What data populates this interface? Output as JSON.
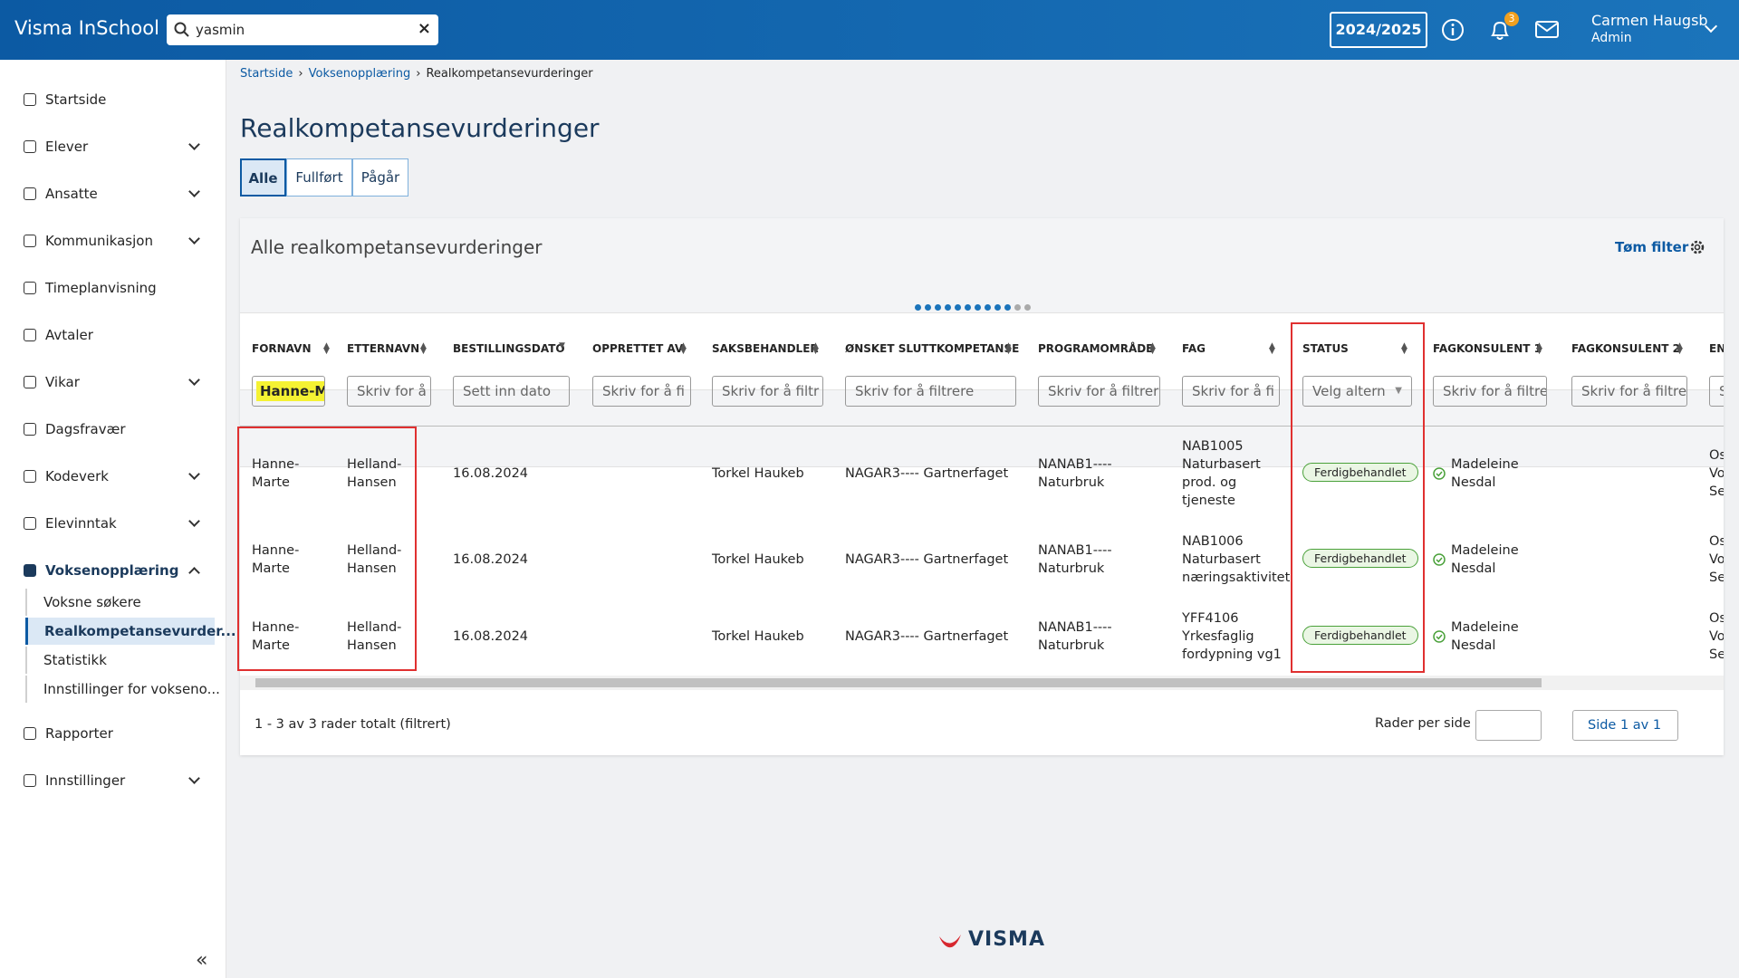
{
  "header": {
    "app_title": "Visma InSchool",
    "search": "yasmin",
    "school_year": "2024/2025",
    "notification_count": "3",
    "user_name": "Carmen Haugsb",
    "user_role": "Admin"
  },
  "sidebar": {
    "items": [
      {
        "label": "Startside"
      },
      {
        "label": "Elever"
      },
      {
        "label": "Ansatte"
      },
      {
        "label": "Kommunikasjon"
      },
      {
        "label": "Timeplanvisning"
      },
      {
        "label": "Avtaler"
      },
      {
        "label": "Vikar"
      },
      {
        "label": "Dagsfravær"
      },
      {
        "label": "Kodeverk"
      },
      {
        "label": "Elevinntak"
      },
      {
        "label": "Voksenopplæring"
      }
    ],
    "subitems": [
      "Voksne søkere",
      "Realkompetansevurder...",
      "Statistikk",
      "Innstillinger for vokseno..."
    ],
    "bottom_items": [
      "Rapporter",
      "Innstillinger"
    ]
  },
  "breadcrumb": [
    "Startside",
    "Voksenopplæring",
    "Realkompetansevurderinger"
  ],
  "page_title": "Realkompetansevurderinger",
  "tabs": [
    "Alle",
    "Fullført",
    "Pågår"
  ],
  "card": {
    "title": "Alle realkompetansevurderinger",
    "clear_filter": "Tøm filter"
  },
  "table": {
    "columns": [
      {
        "label": "FORNAVN",
        "filter": "Hanne-M"
      },
      {
        "label": "ETTERNAVN",
        "filter": "Skriv for å"
      },
      {
        "label": "BESTILLINGSDATO",
        "filter": "Sett inn dato"
      },
      {
        "label": "OPPRETTET AV",
        "filter": "Skriv for å fi"
      },
      {
        "label": "SAKSBEHANDLER",
        "filter": "Skriv for å filtr"
      },
      {
        "label": "ØNSKET SLUTTKOMPETANSE",
        "filter": "Skriv for å filtrere"
      },
      {
        "label": "PROGRAMOMRÅDE",
        "filter": "Skriv for å filtrer"
      },
      {
        "label": "FAG",
        "filter": "Skriv for å fi"
      },
      {
        "label": "STATUS",
        "filter": "Velg altern"
      },
      {
        "label": "FAGKONSULENT 1",
        "filter": "Skriv for å filtre"
      },
      {
        "label": "FAGKONSULENT 2",
        "filter": "Skriv for å filtre"
      },
      {
        "label": "EN",
        "filter": "S"
      }
    ],
    "rows": [
      {
        "fornavn": "Hanne-Marte",
        "etternavn": "Helland-Hansen",
        "bestillingsdato": "16.08.2024",
        "saksbehandler": "Torkel Haukeb",
        "onsket": "NAGAR3---- Gartnerfaget",
        "program": "NANAB1---- Naturbruk",
        "fag": "NAB1005 Naturbasert prod. og tjeneste",
        "status": "Ferdigbehandlet",
        "fagkonsulent1": "Madeleine Nesdal",
        "en": "Os Vo Se"
      },
      {
        "fornavn": "Hanne-Marte",
        "etternavn": "Helland-Hansen",
        "bestillingsdato": "16.08.2024",
        "saksbehandler": "Torkel Haukeb",
        "onsket": "NAGAR3---- Gartnerfaget",
        "program": "NANAB1---- Naturbruk",
        "fag": "NAB1006 Naturbasert næringsaktivitet",
        "status": "Ferdigbehandlet",
        "fagkonsulent1": "Madeleine Nesdal",
        "en": "Os Vo Se"
      },
      {
        "fornavn": "Hanne-Marte",
        "etternavn": "Helland-Hansen",
        "bestillingsdato": "16.08.2024",
        "saksbehandler": "Torkel Haukeb",
        "onsket": "NAGAR3---- Gartnerfaget",
        "program": "NANAB1---- Naturbruk",
        "fag": "YFF4106 Yrkesfaglig fordypning vg1",
        "status": "Ferdigbehandlet",
        "fagkonsulent1": "Madeleine Nesdal",
        "en": "Os Vo Se"
      }
    ],
    "summary": "1 - 3 av 3 rader totalt (filtrert)",
    "rows_per_page": "Rader per side",
    "page": "Side 1 av 1"
  },
  "footer_logo": "VISMA"
}
